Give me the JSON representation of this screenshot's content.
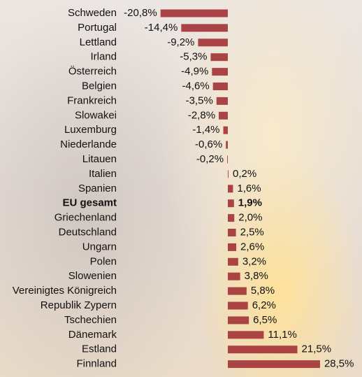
{
  "chart_data": {
    "type": "bar",
    "orientation": "horizontal",
    "categories": [
      "Schweden",
      "Portugal",
      "Lettland",
      "Irland",
      "Österreich",
      "Belgien",
      "Frankreich",
      "Slowakei",
      "Luxemburg",
      "Niederlande",
      "Litauen",
      "Italien",
      "Spanien",
      "EU gesamt",
      "Griechenland",
      "Deutschland",
      "Ungarn",
      "Polen",
      "Slowenien",
      "Vereinigtes Königreich",
      "Republik Zypern",
      "Tschechien",
      "Dänemark",
      "Estland",
      "Finnland"
    ],
    "values": [
      -20.8,
      -14.4,
      -9.2,
      -5.3,
      -4.9,
      -4.6,
      -3.5,
      -2.8,
      -1.4,
      -0.6,
      -0.2,
      0.2,
      1.6,
      1.9,
      2.0,
      2.5,
      2.6,
      3.2,
      3.8,
      5.8,
      6.2,
      6.5,
      11.1,
      21.5,
      28.5
    ],
    "value_labels": [
      "-20,8%",
      "-14,4%",
      "-9,2%",
      "-5,3%",
      "-4,9%",
      "-4,6%",
      "-3,5%",
      "-2,8%",
      "-1,4%",
      "-0,6%",
      "-0,2%",
      "0,2%",
      "1,6%",
      "1,9%",
      "2,0%",
      "2,5%",
      "2,6%",
      "3,2%",
      "3,8%",
      "5,8%",
      "6,2%",
      "6,5%",
      "11,1%",
      "21,5%",
      "28,5%"
    ],
    "color": "#a53a3c",
    "highlight_category": "EU gesamt"
  }
}
